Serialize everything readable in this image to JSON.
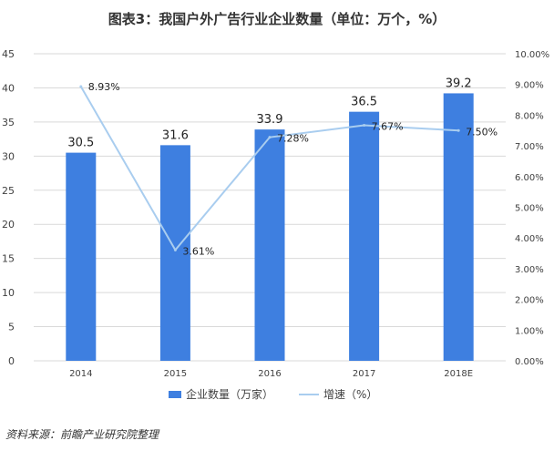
{
  "title": "图表3：我国户外广告行业企业数量（单位：万个，%）",
  "source_note": "资料来源：前瞻产业研究院整理",
  "colors": {
    "bar": "#3e7fe0",
    "line": "#a9cdef",
    "grid": "#d9d9d9",
    "axis_text": "#404040"
  },
  "chart_data": {
    "type": "bar",
    "categories": [
      "2014",
      "2015",
      "2016",
      "2017",
      "2018E"
    ],
    "series": [
      {
        "name": "企业数量（万家）",
        "type": "bar",
        "axis": "left",
        "values": [
          30.5,
          31.6,
          33.9,
          36.5,
          39.2
        ]
      },
      {
        "name": "增速（%）",
        "type": "line",
        "axis": "right",
        "values": [
          8.93,
          3.61,
          7.28,
          7.67,
          7.5
        ]
      }
    ],
    "bar_labels": [
      "30.5",
      "31.6",
      "33.9",
      "36.5",
      "39.2"
    ],
    "line_labels": [
      "8.93%",
      "3.61%",
      "7.28%",
      "7.67%",
      "7.50%"
    ],
    "y_left": {
      "range": [
        0,
        45
      ],
      "ticks": [
        "0",
        "5",
        "10",
        "15",
        "20",
        "25",
        "30",
        "35",
        "40",
        "45"
      ]
    },
    "y_right": {
      "range": [
        0,
        10
      ],
      "ticks": [
        "0.00%",
        "1.00%",
        "2.00%",
        "3.00%",
        "4.00%",
        "5.00%",
        "6.00%",
        "7.00%",
        "8.00%",
        "9.00%",
        "10.00%"
      ]
    },
    "grid": true,
    "legend": "bottom"
  }
}
